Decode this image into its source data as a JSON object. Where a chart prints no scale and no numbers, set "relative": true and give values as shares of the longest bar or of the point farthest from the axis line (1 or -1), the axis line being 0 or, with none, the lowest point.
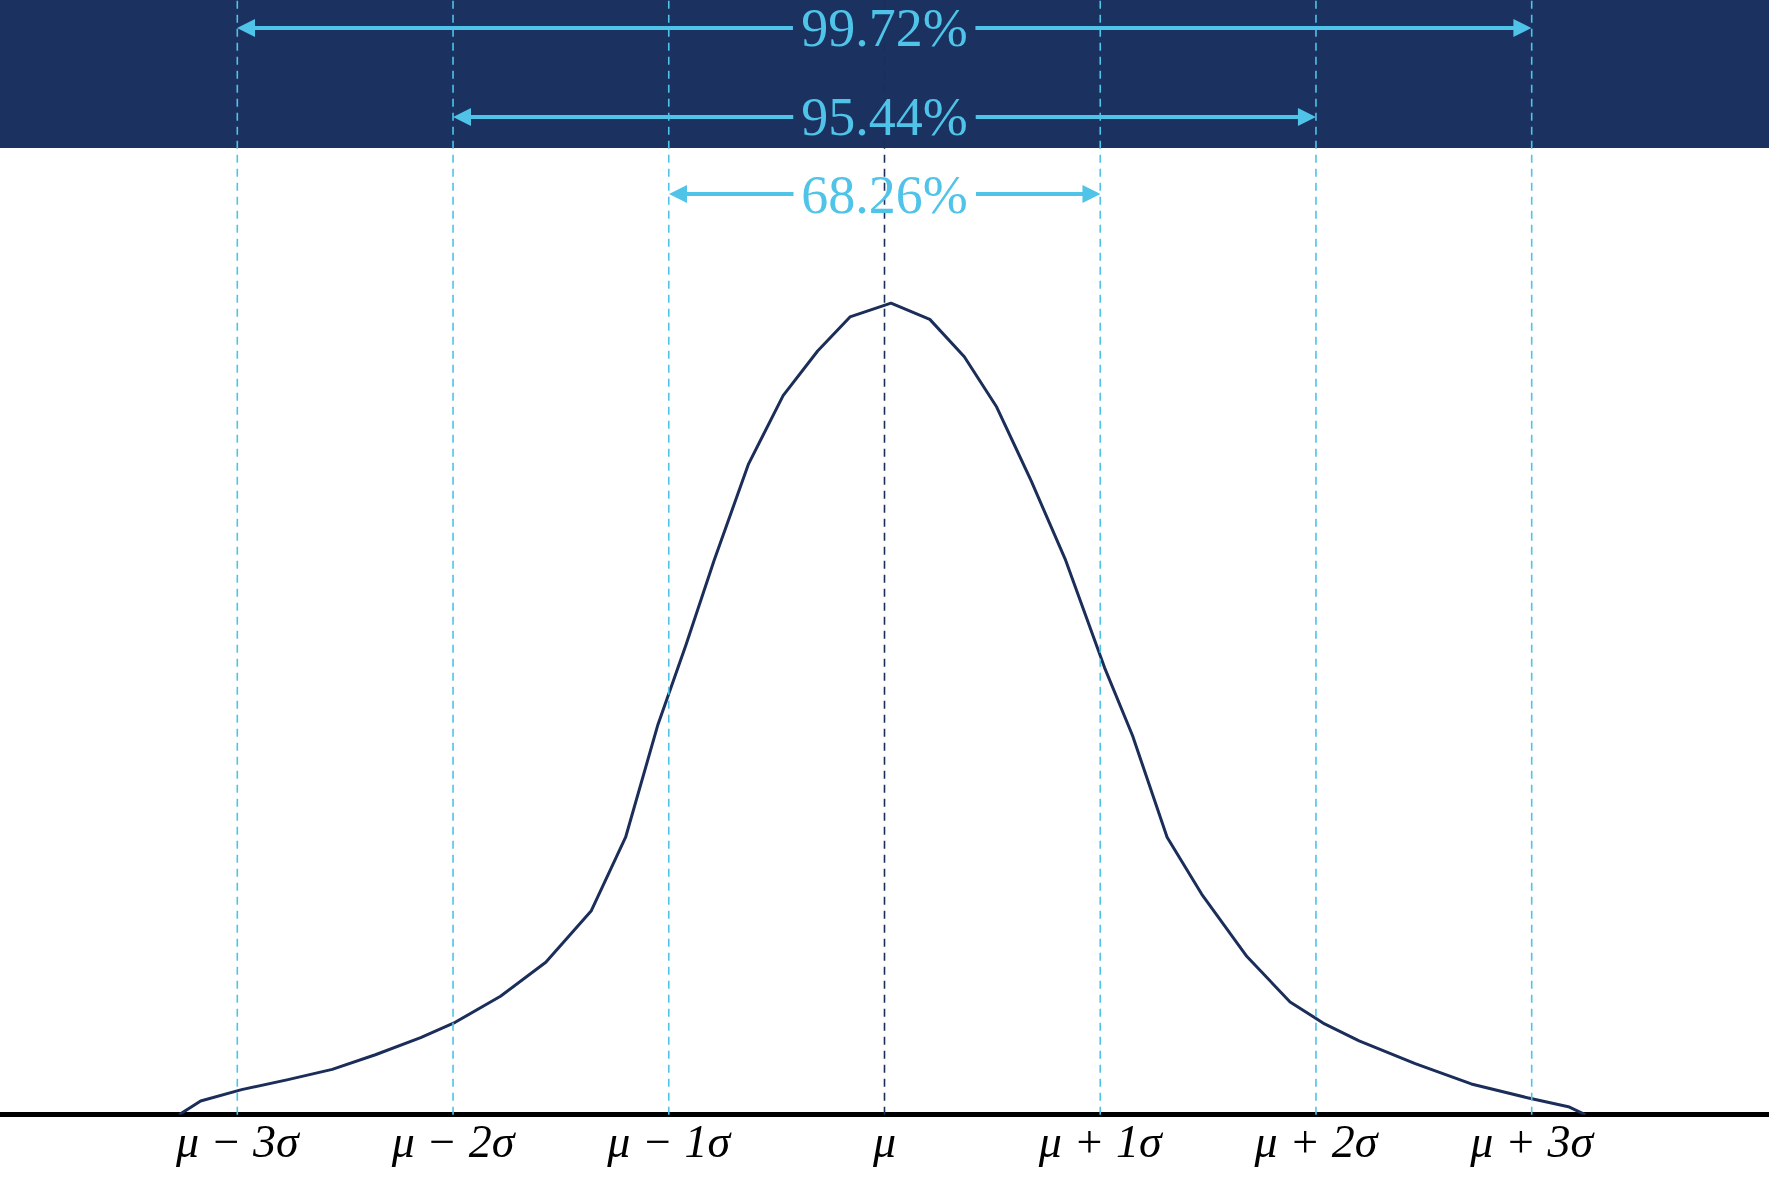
{
  "chart_data": {
    "type": "line",
    "relative": true,
    "marker": "none",
    "line_style": "solid",
    "grid": false,
    "legend": false,
    "xlim": [
      -4.1,
      4.1
    ],
    "xticks": [
      {
        "value": -3,
        "label": "μ − 3σ"
      },
      {
        "value": -2,
        "label": "μ − 2σ"
      },
      {
        "value": -1,
        "label": "μ − 1σ"
      },
      {
        "value": 0,
        "label": "μ"
      },
      {
        "value": 1,
        "label": "μ + 1σ"
      },
      {
        "value": 2,
        "label": "μ + 2σ"
      },
      {
        "value": 3,
        "label": "μ + 3σ"
      }
    ],
    "series": [
      {
        "color": "#1b2e5a",
        "x": [
          -3.27,
          -3.17,
          -2.98,
          -2.77,
          -2.56,
          -2.36,
          -2.15,
          -1.99,
          -1.78,
          -1.57,
          -1.36,
          -1.2,
          -1.05,
          -0.92,
          -0.79,
          -0.63,
          -0.47,
          -0.31,
          -0.16,
          0.03,
          0.21,
          0.37,
          0.52,
          0.68,
          0.84,
          1.02,
          1.15,
          1.31,
          1.47,
          1.68,
          1.88,
          2.04,
          2.2,
          2.46,
          2.72,
          2.98,
          3.17,
          3.25
        ],
        "values": [
          0,
          0.017,
          0.031,
          0.043,
          0.056,
          0.074,
          0.095,
          0.114,
          0.146,
          0.188,
          0.251,
          0.342,
          0.481,
          0.579,
          0.683,
          0.802,
          0.886,
          0.941,
          0.983,
          1,
          0.98,
          0.934,
          0.872,
          0.781,
          0.683,
          0.551,
          0.467,
          0.342,
          0.272,
          0.195,
          0.139,
          0.112,
          0.091,
          0.063,
          0.038,
          0.021,
          0.01,
          0
        ]
      }
    ],
    "ref_lines": [
      {
        "axis": "x",
        "value": -3,
        "color": "#4fc3e8",
        "line_style": "dashed"
      },
      {
        "axis": "x",
        "value": -2,
        "color": "#4fc3e8",
        "line_style": "dashed"
      },
      {
        "axis": "x",
        "value": -1,
        "color": "#4fc3e8",
        "line_style": "dashed"
      },
      {
        "axis": "x",
        "value": 0,
        "color": "#1b2e5a",
        "line_style": "dashed"
      },
      {
        "axis": "x",
        "value": 1,
        "color": "#4fc3e8",
        "line_style": "dashed"
      },
      {
        "axis": "x",
        "value": 2,
        "color": "#4fc3e8",
        "line_style": "dashed"
      },
      {
        "axis": "x",
        "value": 3,
        "color": "#4fc3e8",
        "line_style": "dashed"
      }
    ],
    "annotations": [
      "68.26%",
      "95.44%",
      "99.72%"
    ]
  }
}
